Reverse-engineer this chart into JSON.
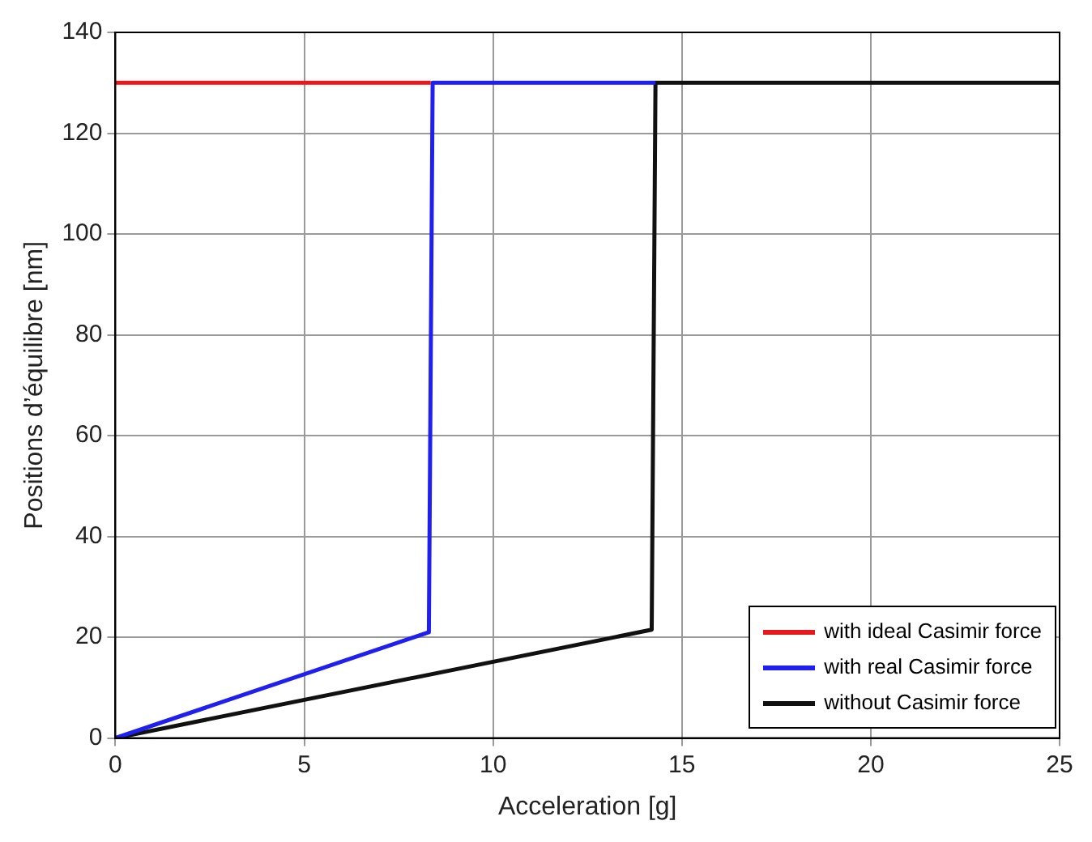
{
  "chart_data": {
    "type": "line",
    "xlabel": "Acceleration [g]",
    "ylabel": "Positions d’équilibre [nm]",
    "xlim": [
      0,
      25
    ],
    "xticks": [
      0,
      5,
      10,
      15,
      20,
      25
    ],
    "ylim": [
      0,
      140
    ],
    "yticks": [
      0,
      20,
      40,
      60,
      80,
      100,
      120,
      140
    ],
    "grid": true,
    "legend": "bottom right",
    "line_style": "solid",
    "marker": "none",
    "series": [
      {
        "name": "with ideal Casimir force",
        "color": "#e8191c",
        "x": [
          0,
          8.35
        ],
        "values": [
          130,
          130
        ]
      },
      {
        "name": "with real Casimir force",
        "color": "#1f1ff0",
        "x": [
          0,
          8.3,
          8.4,
          14.3
        ],
        "values": [
          0,
          21,
          130,
          130
        ]
      },
      {
        "name": "without Casimir force",
        "color": "#111111",
        "x": [
          0,
          14.2,
          14.3,
          25
        ],
        "values": [
          0,
          21.5,
          130,
          130
        ]
      }
    ]
  }
}
